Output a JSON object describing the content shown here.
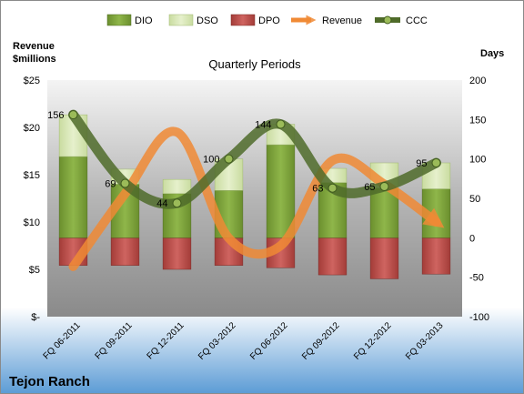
{
  "company": "Tejon Ranch",
  "chart_data": {
    "type": "bar",
    "title": "Quarterly Periods",
    "categories": [
      "FQ 06-2011",
      "FQ 09-2011",
      "FQ 12-2011",
      "FQ 03-2012",
      "FQ 06-2012",
      "FQ 09-2012",
      "FQ 12-2012",
      "FQ 03-2013"
    ],
    "left_axis": {
      "label": "Revenue\n$millions",
      "ylim": [
        0,
        25
      ],
      "ticks": [
        0,
        5,
        10,
        15,
        20,
        25
      ],
      "tick_labels": [
        "$-",
        "$5",
        "$10",
        "$15",
        "$20",
        "$25"
      ]
    },
    "right_axis": {
      "label": "Days",
      "ylim": [
        -100,
        200
      ],
      "ticks": [
        -100,
        -50,
        0,
        50,
        100,
        150,
        200
      ],
      "tick_labels": [
        "-100",
        "-50",
        "0",
        "50",
        "100",
        "150",
        "200"
      ]
    },
    "series": [
      {
        "name": "DIO",
        "axis": "right",
        "kind": "stacked-bar",
        "color": "#7ea33b",
        "values": [
          103,
          68,
          56,
          60,
          118,
          70,
          63,
          62
        ]
      },
      {
        "name": "DSO",
        "axis": "right",
        "kind": "stacked-bar",
        "color": "#d6e7b0",
        "values": [
          53,
          19,
          18,
          40,
          26,
          18,
          32,
          33
        ]
      },
      {
        "name": "DPO",
        "axis": "right",
        "kind": "negative-bar",
        "color": "#c0504d",
        "values": [
          -35,
          -35,
          -40,
          -35,
          -38,
          -47,
          -52,
          -46
        ]
      },
      {
        "name": "Revenue",
        "axis": "left",
        "kind": "line",
        "color": "#f08a35",
        "values": [
          5.3,
          13.0,
          19.5,
          8.3,
          7.5,
          16.5,
          14.0,
          10.0
        ]
      },
      {
        "name": "CCC",
        "axis": "right",
        "kind": "line",
        "color": "#4f6b2a",
        "values": [
          156,
          69,
          44,
          100,
          144,
          63,
          65,
          95
        ],
        "data_labels": [
          "156",
          "69",
          "44",
          "100",
          "144",
          "63",
          "65",
          "95"
        ]
      }
    ],
    "legend": [
      "DIO",
      "DSO",
      "DPO",
      "Revenue",
      "CCC"
    ],
    "legend_position": "top",
    "grid": false
  }
}
